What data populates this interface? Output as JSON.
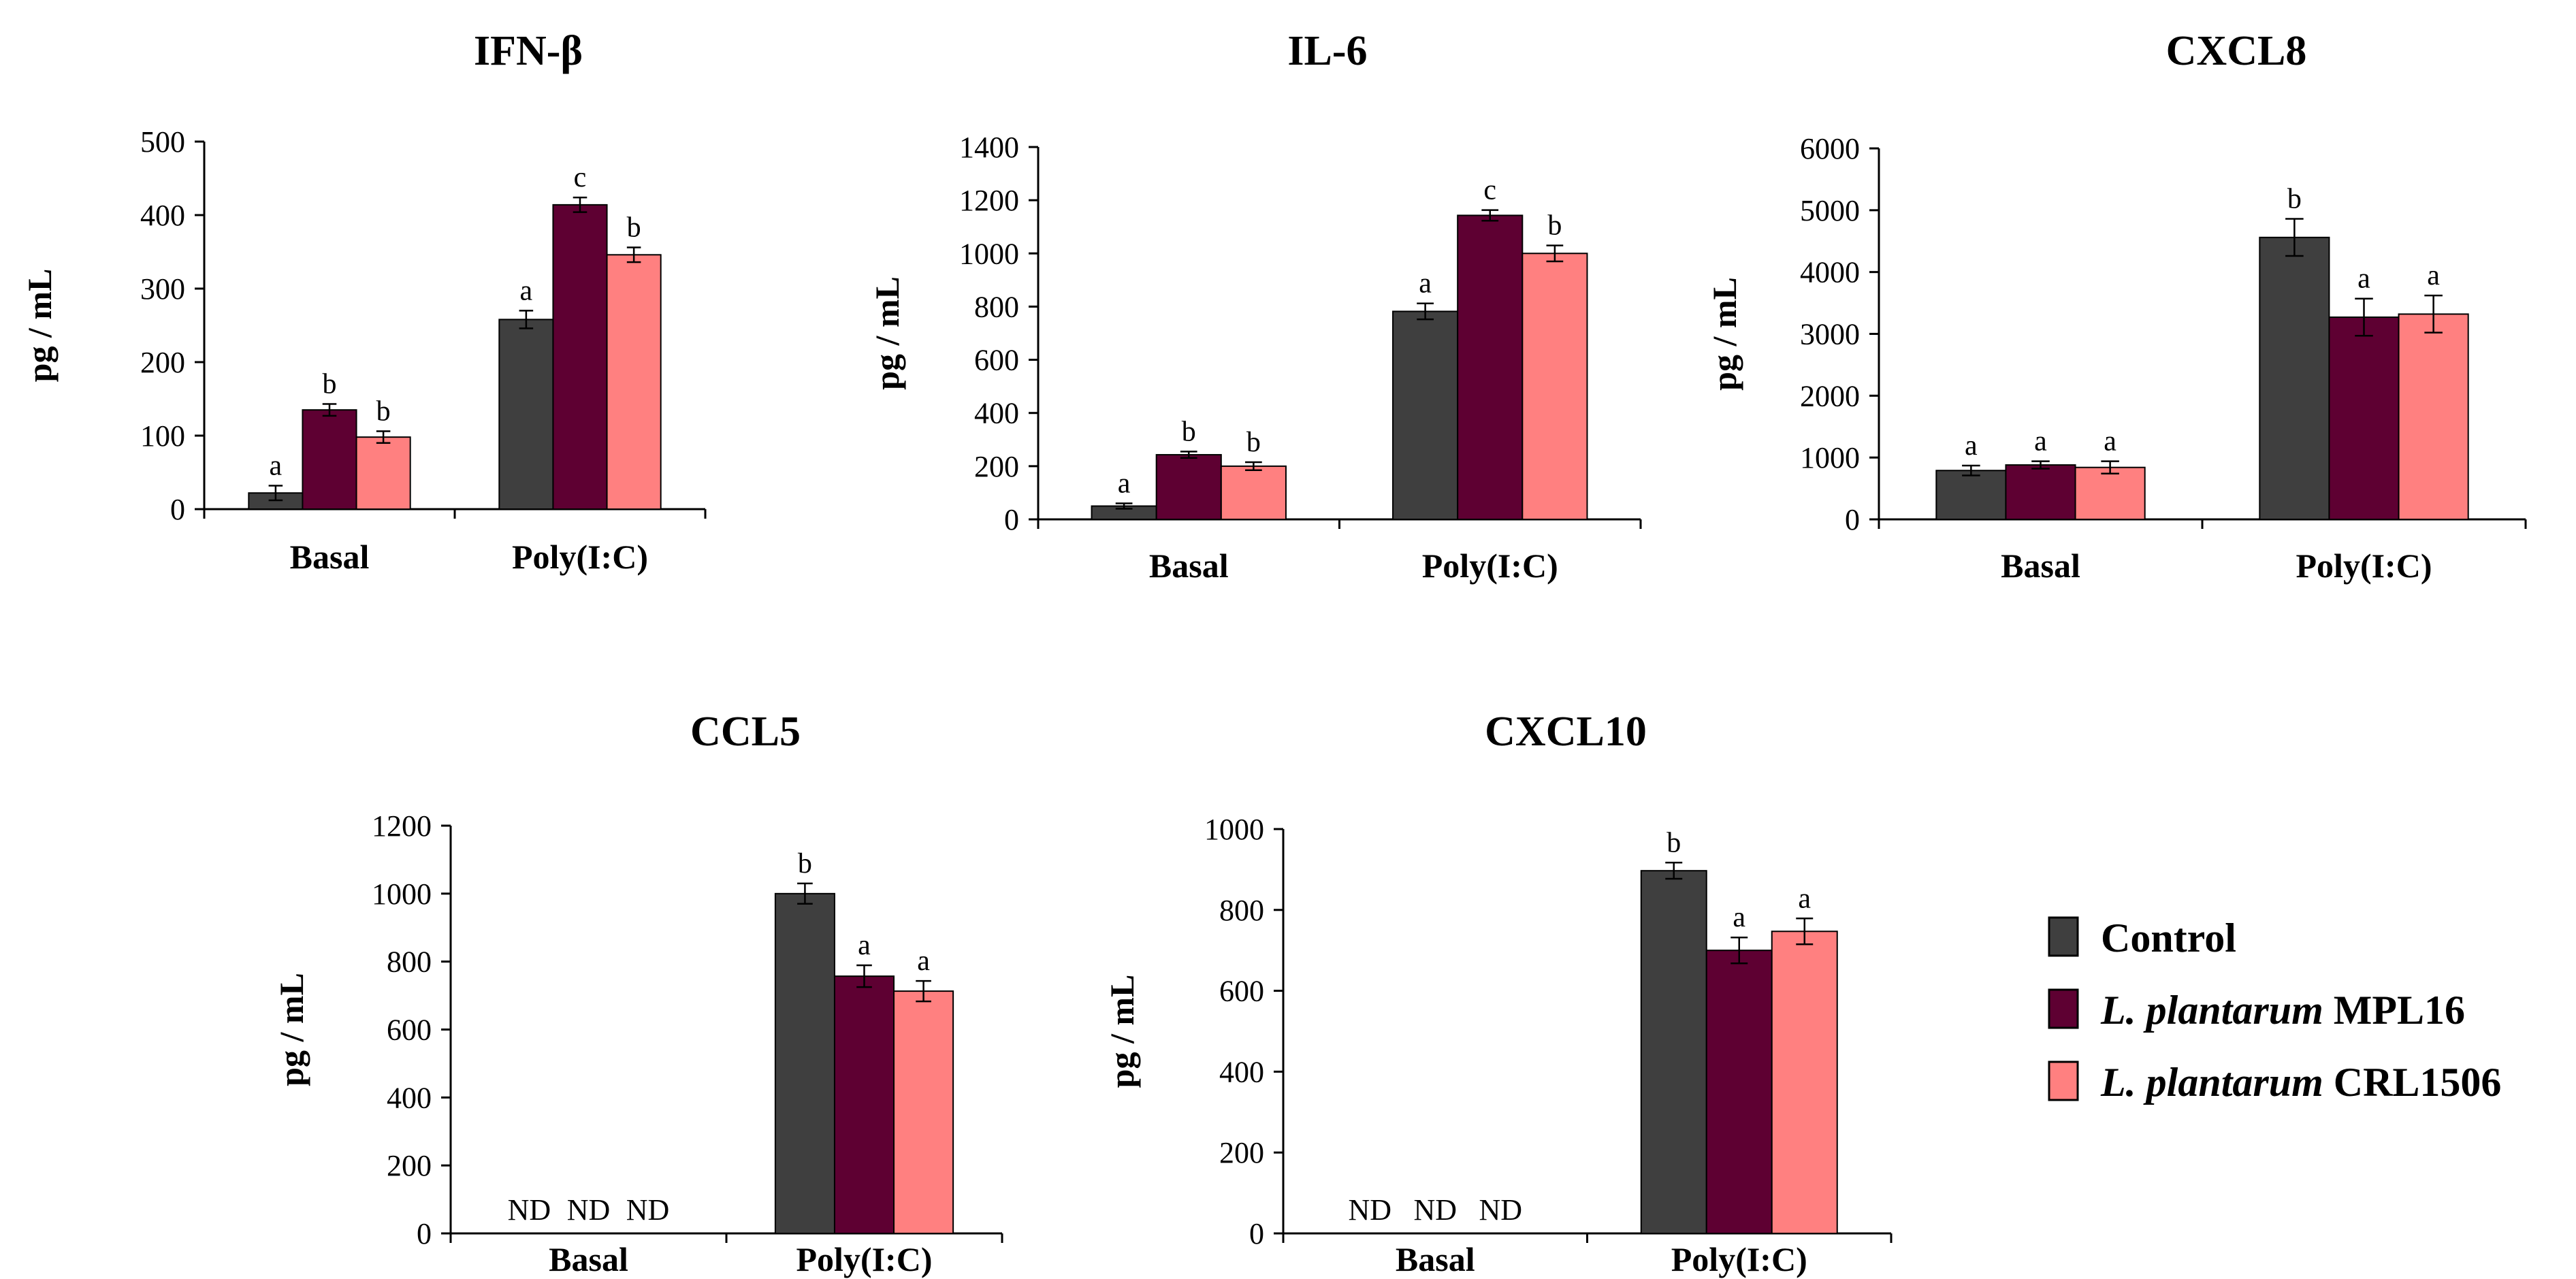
{
  "colors": {
    "control": "#3f3f3f",
    "mpl16": "#5e0032",
    "crl1506": "#ff8080",
    "axis": "#000000"
  },
  "legend": {
    "items": [
      {
        "key": "control",
        "label_italic": "",
        "label": "Control"
      },
      {
        "key": "mpl16",
        "label_italic": "L. plantarum",
        "label": " MPL16"
      },
      {
        "key": "crl1506",
        "label_italic": "L. plantarum",
        "label": " CRL1506"
      }
    ]
  },
  "chart_data": [
    {
      "type": "bar",
      "title": "IFN-β",
      "ylabel": "pg / mL",
      "xlabel": "",
      "ylim": [
        0,
        500
      ],
      "yticks": [
        0,
        100,
        200,
        300,
        400,
        500
      ],
      "categories": [
        "Basal",
        "Poly(I:C)"
      ],
      "series": [
        {
          "name": "Control",
          "values": [
            22,
            258
          ],
          "errors": [
            10,
            12
          ],
          "labels": [
            "a",
            "a"
          ]
        },
        {
          "name": "L. plantarum MPL16",
          "values": [
            135,
            414
          ],
          "errors": [
            8,
            10
          ],
          "labels": [
            "b",
            "c"
          ]
        },
        {
          "name": "L. plantarum CRL1506",
          "values": [
            98,
            346
          ],
          "errors": [
            8,
            10
          ],
          "labels": [
            "b",
            "b"
          ]
        }
      ]
    },
    {
      "type": "bar",
      "title": "IL-6",
      "ylabel": "pg / mL",
      "xlabel": "",
      "ylim": [
        0,
        1400
      ],
      "yticks": [
        0,
        200,
        400,
        600,
        800,
        1000,
        1200,
        1400
      ],
      "categories": [
        "Basal",
        "Poly(I:C)"
      ],
      "series": [
        {
          "name": "Control",
          "values": [
            50,
            782
          ],
          "errors": [
            10,
            30
          ],
          "labels": [
            "a",
            "a"
          ]
        },
        {
          "name": "L. plantarum MPL16",
          "values": [
            243,
            1143
          ],
          "errors": [
            12,
            20
          ],
          "labels": [
            "b",
            "c"
          ]
        },
        {
          "name": "L. plantarum CRL1506",
          "values": [
            200,
            1000
          ],
          "errors": [
            15,
            30
          ],
          "labels": [
            "b",
            "b"
          ]
        }
      ]
    },
    {
      "type": "bar",
      "title": "CXCL8",
      "ylabel": "pg / mL",
      "xlabel": "",
      "ylim": [
        0,
        6000
      ],
      "yticks": [
        0,
        1000,
        2000,
        3000,
        4000,
        5000,
        6000
      ],
      "categories": [
        "Basal",
        "Poly(I:C)"
      ],
      "series": [
        {
          "name": "Control",
          "values": [
            790,
            4560
          ],
          "errors": [
            80,
            300
          ],
          "labels": [
            "a",
            "b"
          ]
        },
        {
          "name": "L. plantarum MPL16",
          "values": [
            880,
            3270
          ],
          "errors": [
            60,
            300
          ],
          "labels": [
            "a",
            "a"
          ]
        },
        {
          "name": "L. plantarum CRL1506",
          "values": [
            840,
            3320
          ],
          "errors": [
            100,
            300
          ],
          "labels": [
            "a",
            "a"
          ]
        }
      ]
    },
    {
      "type": "bar",
      "title": "CCL5",
      "ylabel": "pg / mL",
      "xlabel": "",
      "ylim": [
        0,
        1200
      ],
      "yticks": [
        0,
        200,
        400,
        600,
        800,
        1000,
        1200
      ],
      "categories": [
        "Basal",
        "Poly(I:C)"
      ],
      "series": [
        {
          "name": "Control",
          "values": [
            null,
            1000
          ],
          "errors": [
            0,
            30
          ],
          "labels": [
            "ND",
            "b"
          ]
        },
        {
          "name": "L. plantarum MPL16",
          "values": [
            null,
            757
          ],
          "errors": [
            0,
            32
          ],
          "labels": [
            "ND",
            "a"
          ]
        },
        {
          "name": "L. plantarum CRL1506",
          "values": [
            null,
            713
          ],
          "errors": [
            0,
            30
          ],
          "labels": [
            "ND",
            "a"
          ]
        }
      ]
    },
    {
      "type": "bar",
      "title": "CXCL10",
      "ylabel": "pg / mL",
      "xlabel": "",
      "ylim": [
        0,
        1000
      ],
      "yticks": [
        0,
        200,
        400,
        600,
        800,
        1000
      ],
      "categories": [
        "Basal",
        "Poly(I:C)"
      ],
      "series": [
        {
          "name": "Control",
          "values": [
            null,
            897
          ],
          "errors": [
            0,
            20
          ],
          "labels": [
            "ND",
            "b"
          ]
        },
        {
          "name": "L. plantarum MPL16",
          "values": [
            null,
            700
          ],
          "errors": [
            0,
            32
          ],
          "labels": [
            "ND",
            "a"
          ]
        },
        {
          "name": "L. plantarum CRL1506",
          "values": [
            null,
            747
          ],
          "errors": [
            0,
            32
          ],
          "labels": [
            "ND",
            "a"
          ]
        }
      ]
    }
  ]
}
